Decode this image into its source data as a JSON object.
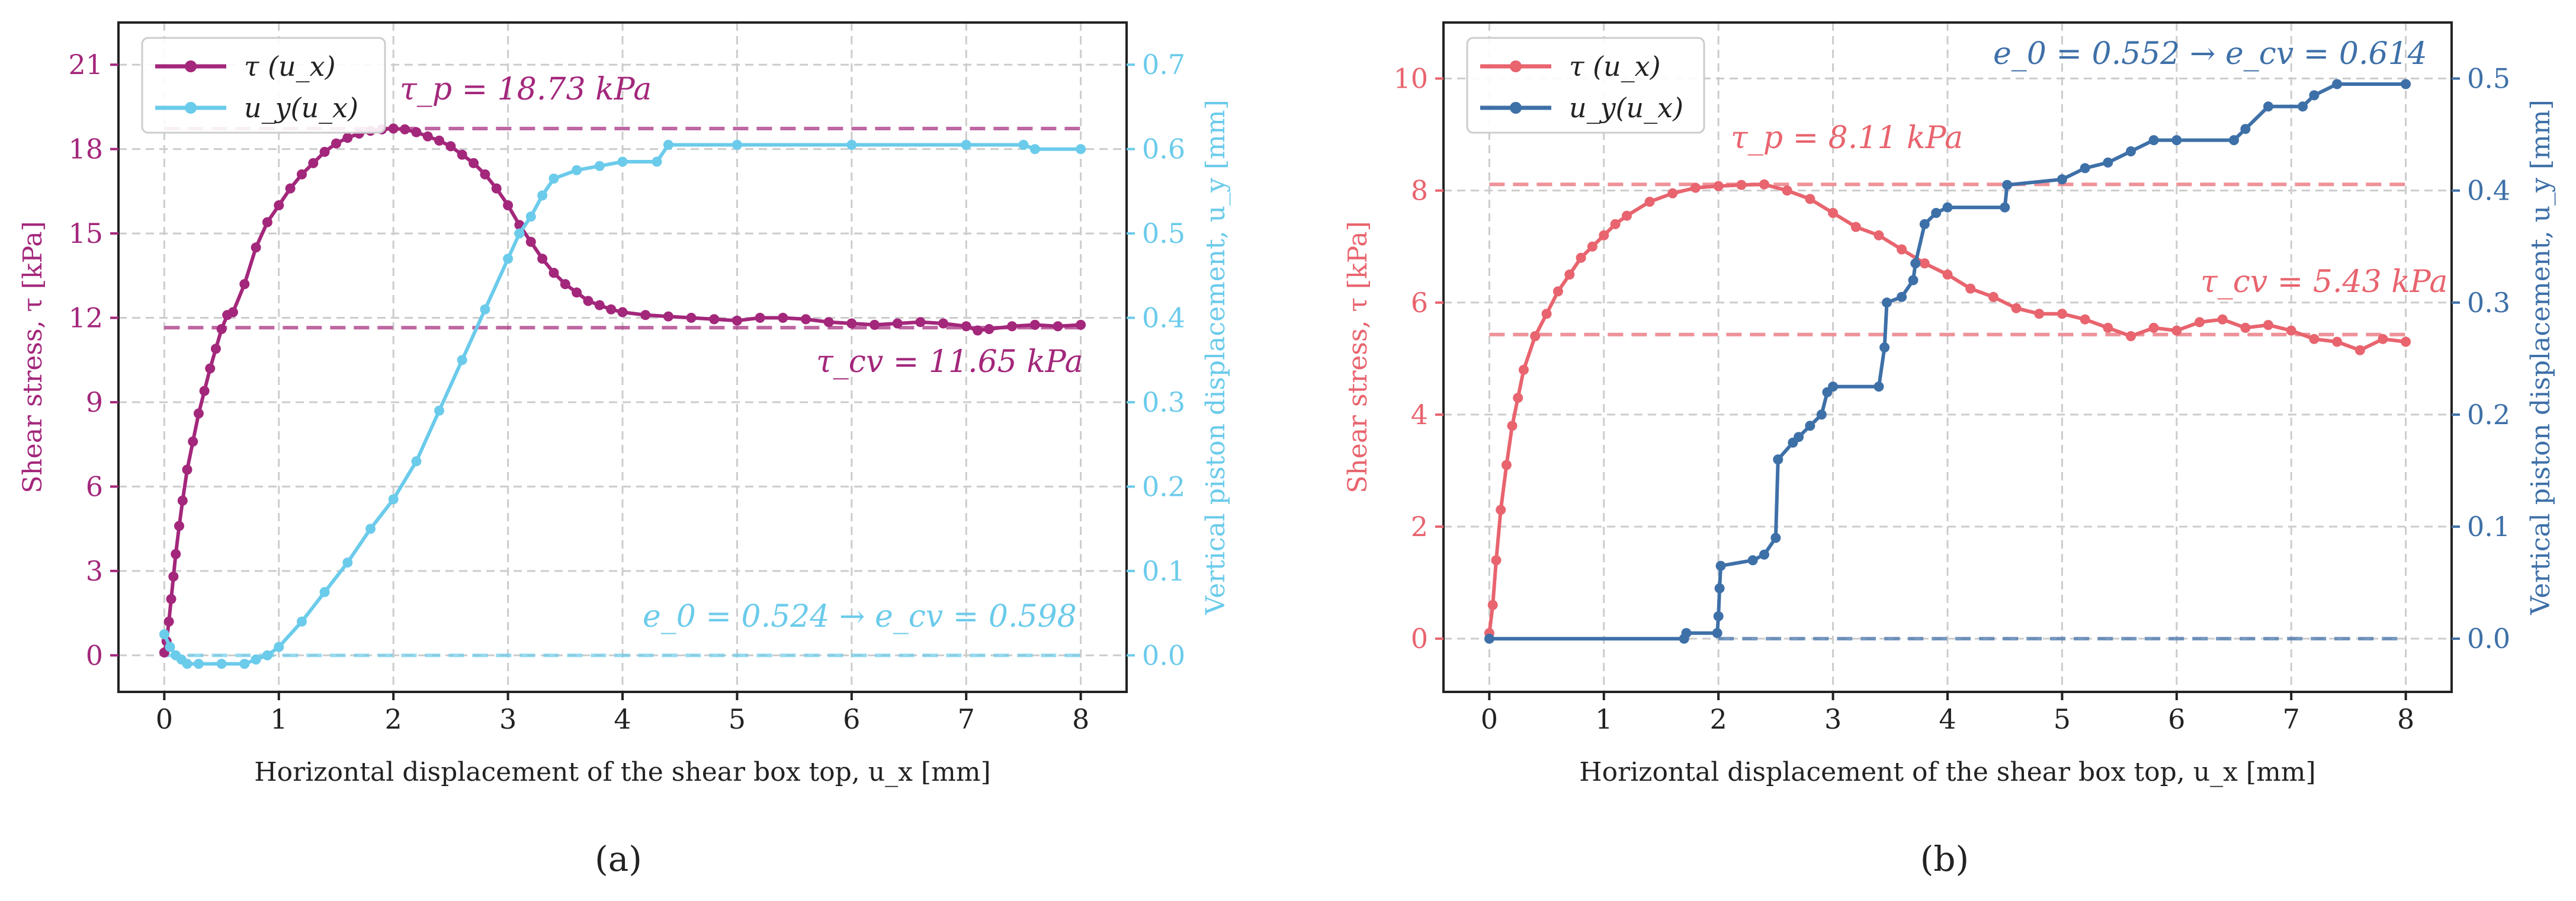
{
  "figure": {
    "panel_labels": [
      "(a)",
      "(b)"
    ]
  },
  "chart_data": [
    {
      "type": "line",
      "panel": "(a)",
      "xlabel": "Horizontal displacement of the shear box top, u_x [mm]",
      "ylabel": "Shear stress, τ [kPa]",
      "y2label": "Vertical piston displacement, u_y [mm]",
      "xlim": [
        -0.4,
        8.4
      ],
      "ylim": [
        -1.3,
        22.5
      ],
      "y2lim": [
        -0.0433,
        0.75
      ],
      "xticks": [
        0,
        1,
        2,
        3,
        4,
        5,
        6,
        7,
        8
      ],
      "yticks": [
        0,
        3,
        6,
        9,
        12,
        15,
        18,
        21
      ],
      "y2ticks": [
        0.0,
        0.1,
        0.2,
        0.3,
        0.4,
        0.5,
        0.6,
        0.7
      ],
      "y2tick_labels": [
        "0.0",
        "0.1",
        "0.2",
        "0.3",
        "0.4",
        "0.5",
        "0.6",
        "0.7"
      ],
      "grid": true,
      "legend_position": "top-left",
      "colors": {
        "tau": "#A3277B",
        "uy": "#6BCBEB",
        "axis_left": "#A3277B",
        "axis_right": "#6BCBEB"
      },
      "series": [
        {
          "name": "τ (u_x)",
          "axis": "left",
          "x": [
            0,
            0.02,
            0.04,
            0.06,
            0.08,
            0.1,
            0.13,
            0.16,
            0.2,
            0.25,
            0.3,
            0.35,
            0.4,
            0.45,
            0.5,
            0.55,
            0.6,
            0.7,
            0.8,
            0.9,
            1.0,
            1.1,
            1.2,
            1.3,
            1.4,
            1.5,
            1.6,
            1.7,
            1.8,
            1.9,
            2.0,
            2.1,
            2.2,
            2.3,
            2.4,
            2.5,
            2.6,
            2.7,
            2.8,
            2.9,
            3.0,
            3.1,
            3.2,
            3.3,
            3.4,
            3.5,
            3.6,
            3.7,
            3.8,
            3.9,
            4.0,
            4.2,
            4.4,
            4.6,
            4.8,
            5.0,
            5.2,
            5.4,
            5.6,
            5.8,
            6.0,
            6.2,
            6.4,
            6.6,
            6.8,
            7.0,
            7.1,
            7.2,
            7.4,
            7.6,
            7.8,
            8.0
          ],
          "y": [
            0.1,
            0.5,
            1.2,
            2.0,
            2.8,
            3.6,
            4.6,
            5.5,
            6.6,
            7.6,
            8.6,
            9.4,
            10.2,
            10.9,
            11.6,
            12.1,
            12.2,
            13.2,
            14.5,
            15.4,
            16.0,
            16.6,
            17.1,
            17.5,
            17.9,
            18.2,
            18.4,
            18.55,
            18.65,
            18.7,
            18.73,
            18.7,
            18.6,
            18.45,
            18.3,
            18.1,
            17.8,
            17.5,
            17.1,
            16.6,
            16.0,
            15.3,
            14.7,
            14.1,
            13.6,
            13.2,
            12.9,
            12.6,
            12.45,
            12.3,
            12.2,
            12.1,
            12.05,
            12.0,
            11.95,
            11.9,
            12.0,
            12.0,
            11.95,
            11.85,
            11.8,
            11.75,
            11.8,
            11.85,
            11.8,
            11.7,
            11.55,
            11.6,
            11.7,
            11.75,
            11.7,
            11.75
          ]
        },
        {
          "name": "u_y(u_x)",
          "axis": "right",
          "x": [
            0,
            0.05,
            0.1,
            0.15,
            0.2,
            0.3,
            0.5,
            0.7,
            0.8,
            0.9,
            1.0,
            1.2,
            1.4,
            1.6,
            1.8,
            2.0,
            2.2,
            2.4,
            2.6,
            2.8,
            3.0,
            3.1,
            3.2,
            3.3,
            3.4,
            3.6,
            3.8,
            4.0,
            4.3,
            4.4,
            5.0,
            6.0,
            7.0,
            7.5,
            7.6,
            8.0
          ],
          "y": [
            0.025,
            0.01,
            0.0,
            -0.005,
            -0.01,
            -0.01,
            -0.01,
            -0.01,
            -0.005,
            0.0,
            0.01,
            0.04,
            0.075,
            0.11,
            0.15,
            0.185,
            0.23,
            0.29,
            0.35,
            0.41,
            0.47,
            0.5,
            0.52,
            0.545,
            0.565,
            0.575,
            0.58,
            0.585,
            0.585,
            0.605,
            0.605,
            0.605,
            0.605,
            0.605,
            0.6,
            0.6
          ]
        }
      ],
      "reference_lines": [
        {
          "name": "peak",
          "axis": "left",
          "value": 18.73,
          "x_range": [
            0,
            8
          ]
        },
        {
          "name": "critical state",
          "axis": "left",
          "value": 11.65,
          "x_range": [
            0,
            8
          ]
        },
        {
          "name": "void-ratio baseline",
          "axis": "right",
          "value": 0.0,
          "x_range": [
            0,
            8
          ]
        }
      ],
      "annotations": {
        "tau_p": "τ_p = 18.73 kPa",
        "tau_cv": "τ_cv = 11.65 kPa",
        "void_ratio": "e_0 = 0.524 → e_cv = 0.598"
      }
    },
    {
      "type": "line",
      "panel": "(b)",
      "xlabel": "Horizontal displacement of the shear box top, u_x [mm]",
      "ylabel": "Shear stress, τ [kPa]",
      "y2label": "Vertical piston displacement, u_y [mm]",
      "xlim": [
        -0.4,
        8.4
      ],
      "ylim": [
        -0.95,
        11.0
      ],
      "y2lim": [
        -0.0475,
        0.55
      ],
      "xticks": [
        0,
        1,
        2,
        3,
        4,
        5,
        6,
        7,
        8
      ],
      "yticks": [
        0,
        2,
        4,
        6,
        8,
        10
      ],
      "y2ticks": [
        0.0,
        0.1,
        0.2,
        0.3,
        0.4,
        0.5
      ],
      "y2tick_labels": [
        "0.0",
        "0.1",
        "0.2",
        "0.3",
        "0.4",
        "0.5"
      ],
      "grid": true,
      "legend_position": "top-left",
      "colors": {
        "tau": "#E8646E",
        "uy": "#3E70A8",
        "axis_left": "#E8646E",
        "axis_right": "#3E70A8"
      },
      "series": [
        {
          "name": "τ (u_x)",
          "axis": "left",
          "x": [
            0,
            0.03,
            0.06,
            0.1,
            0.15,
            0.2,
            0.25,
            0.3,
            0.4,
            0.5,
            0.6,
            0.7,
            0.8,
            0.9,
            1.0,
            1.1,
            1.2,
            1.4,
            1.6,
            1.8,
            2.0,
            2.2,
            2.4,
            2.6,
            2.8,
            3.0,
            3.2,
            3.4,
            3.6,
            3.8,
            4.0,
            4.2,
            4.4,
            4.6,
            4.8,
            5.0,
            5.2,
            5.4,
            5.6,
            5.8,
            6.0,
            6.2,
            6.4,
            6.6,
            6.8,
            7.0,
            7.2,
            7.4,
            7.6,
            7.8,
            8.0
          ],
          "y": [
            0.1,
            0.6,
            1.4,
            2.3,
            3.1,
            3.8,
            4.3,
            4.8,
            5.4,
            5.8,
            6.2,
            6.5,
            6.8,
            7.0,
            7.2,
            7.4,
            7.55,
            7.8,
            7.95,
            8.05,
            8.08,
            8.1,
            8.11,
            8.0,
            7.85,
            7.6,
            7.35,
            7.2,
            6.95,
            6.7,
            6.5,
            6.25,
            6.1,
            5.9,
            5.8,
            5.8,
            5.7,
            5.55,
            5.4,
            5.55,
            5.5,
            5.65,
            5.7,
            5.55,
            5.6,
            5.5,
            5.35,
            5.3,
            5.15,
            5.35,
            5.3
          ]
        },
        {
          "name": "u_y(u_x)",
          "axis": "right",
          "x": [
            0,
            1.7,
            1.72,
            1.99,
            2.0,
            2.01,
            2.02,
            2.3,
            2.4,
            2.5,
            2.52,
            2.65,
            2.7,
            2.8,
            2.9,
            2.95,
            3.0,
            3.4,
            3.45,
            3.47,
            3.6,
            3.7,
            3.72,
            3.8,
            3.9,
            4.0,
            4.5,
            4.52,
            5.0,
            5.2,
            5.4,
            5.6,
            5.8,
            6.0,
            6.5,
            6.6,
            6.8,
            7.1,
            7.2,
            7.4,
            8.0
          ],
          "y": [
            0.0,
            0.0,
            0.005,
            0.005,
            0.02,
            0.045,
            0.065,
            0.07,
            0.075,
            0.09,
            0.16,
            0.175,
            0.18,
            0.19,
            0.2,
            0.22,
            0.225,
            0.225,
            0.26,
            0.3,
            0.305,
            0.32,
            0.335,
            0.37,
            0.38,
            0.385,
            0.385,
            0.405,
            0.41,
            0.42,
            0.425,
            0.435,
            0.445,
            0.445,
            0.445,
            0.455,
            0.475,
            0.475,
            0.485,
            0.495,
            0.495
          ]
        }
      ],
      "reference_lines": [
        {
          "name": "peak",
          "axis": "left",
          "value": 8.11,
          "x_range": [
            0,
            8
          ]
        },
        {
          "name": "critical state",
          "axis": "left",
          "value": 5.43,
          "x_range": [
            0,
            8
          ]
        },
        {
          "name": "void-ratio baseline",
          "axis": "right",
          "value": 0.0,
          "x_range": [
            2,
            8
          ]
        }
      ],
      "annotations": {
        "tau_p": "τ_p = 8.11 kPa",
        "tau_cv": "τ_cv = 5.43 kPa",
        "void_ratio": "e_0 = 0.552 → e_cv = 0.614"
      }
    }
  ]
}
